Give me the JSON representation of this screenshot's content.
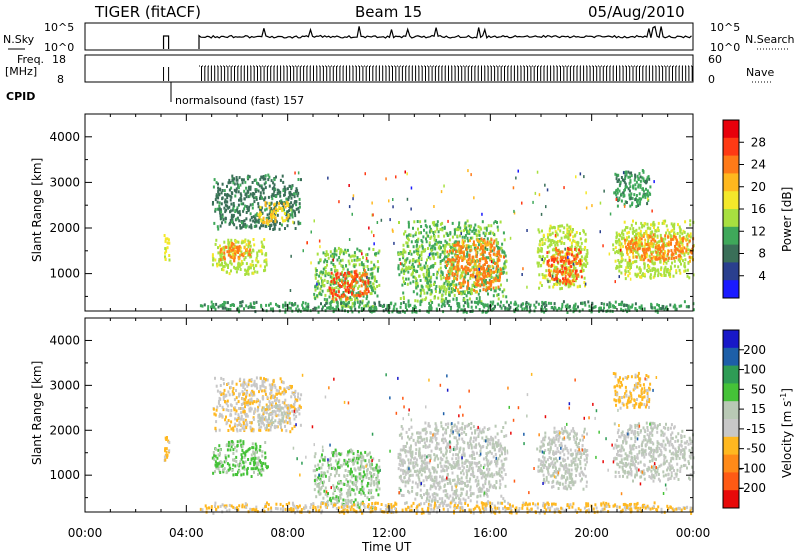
{
  "header": {
    "radar": "TIGER (fitACF)",
    "beam": "Beam 15",
    "date": "05/Aug/2010"
  },
  "aux_panels": {
    "nsky_label": "N.Sky",
    "nsky_ticks": [
      "10^5",
      "10^0"
    ],
    "nsearch_label": "N.Search",
    "nsearch_ticks": [
      "10^5",
      "10^0"
    ],
    "freq_label_1": "Freq.",
    "freq_label_2": "[MHz]",
    "freq_ticks": [
      "18",
      "8"
    ],
    "nave_label": "Nave",
    "nave_ticks": [
      "60",
      "0"
    ],
    "cpid_label": "CPID",
    "cpid_text": "normalsound (fast) 157"
  },
  "axes": {
    "xlabel": "Time UT",
    "x_ticks": [
      "00:00",
      "04:00",
      "08:00",
      "12:00",
      "16:00",
      "20:00",
      "00:00"
    ],
    "ylabel": "Slant Range [km]",
    "y_ticks": [
      "1000",
      "2000",
      "3000",
      "4000"
    ]
  },
  "power_colorbar": {
    "label": "Power [dB]",
    "ticks": [
      "28",
      "24",
      "20",
      "16",
      "12",
      "8",
      "4"
    ],
    "colors": [
      "#e8000b",
      "#ff3a14",
      "#ff7a18",
      "#ffb81e",
      "#f4e82a",
      "#a8e040",
      "#3fa85a",
      "#3a6f58",
      "#2a3f8e",
      "#1a1aff"
    ]
  },
  "velocity_colorbar": {
    "label": "Velocity [m s",
    "label_sup": "-1",
    "label_end": "]",
    "ticks": [
      "200",
      "100",
      "50",
      "15",
      "-15",
      "-50",
      "-100",
      "-200"
    ],
    "colors": [
      "#1818c8",
      "#1d5fa8",
      "#2e9c55",
      "#45c238",
      "#b9c9b5",
      "#c8c8c8",
      "#ffb820",
      "#ff8a18",
      "#ff5a14",
      "#e80a0a"
    ]
  },
  "chart_data": [
    {
      "type": "heatmap",
      "title": "Power",
      "xlabel": "Time UT",
      "ylabel": "Slant Range [km]",
      "xlim": [
        0,
        24
      ],
      "ylim": [
        180,
        4500
      ],
      "colorbar_range": [
        0,
        30
      ],
      "regions": [
        {
          "t0": 3.1,
          "t1": 3.3,
          "r0": 1300,
          "r1": 1900,
          "value": 16
        },
        {
          "t0": 5.0,
          "t1": 7.2,
          "r0": 1000,
          "r1": 1800,
          "value": 14
        },
        {
          "t0": 5.3,
          "t1": 6.5,
          "r0": 1300,
          "r1": 1700,
          "value": 22
        },
        {
          "t0": 5.0,
          "t1": 8.5,
          "r0": 2000,
          "r1": 3200,
          "value": 8
        },
        {
          "t0": 6.8,
          "t1": 8.0,
          "r0": 2100,
          "r1": 2600,
          "value": 18
        },
        {
          "t0": 9.0,
          "t1": 11.6,
          "r0": 300,
          "r1": 1600,
          "value": 12
        },
        {
          "t0": 9.6,
          "t1": 11.2,
          "r0": 450,
          "r1": 1100,
          "value": 24
        },
        {
          "t0": 12.3,
          "t1": 16.6,
          "r0": 400,
          "r1": 2200,
          "value": 12
        },
        {
          "t0": 14.2,
          "t1": 16.4,
          "r0": 600,
          "r1": 1800,
          "value": 22
        },
        {
          "t0": 17.8,
          "t1": 19.8,
          "r0": 700,
          "r1": 2100,
          "value": 14
        },
        {
          "t0": 18.2,
          "t1": 19.6,
          "r0": 800,
          "r1": 1600,
          "value": 24
        },
        {
          "t0": 20.8,
          "t1": 24.0,
          "r0": 900,
          "r1": 2200,
          "value": 14
        },
        {
          "t0": 21.2,
          "t1": 24.0,
          "r0": 1300,
          "r1": 1900,
          "value": 22
        },
        {
          "t0": 20.8,
          "t1": 22.3,
          "r0": 2500,
          "r1": 3300,
          "value": 10
        },
        {
          "t0": 4.5,
          "t1": 24.0,
          "r0": 180,
          "r1": 420,
          "value": 10
        }
      ]
    },
    {
      "type": "heatmap",
      "title": "Velocity",
      "xlabel": "Time UT",
      "ylabel": "Slant Range [km]",
      "xlim": [
        0,
        24
      ],
      "ylim": [
        180,
        4500
      ],
      "colorbar_range": [
        -250,
        250
      ],
      "regions": [
        {
          "t0": 3.1,
          "t1": 3.3,
          "r0": 1300,
          "r1": 1900,
          "value": -60
        },
        {
          "t0": 5.0,
          "t1": 7.2,
          "r0": 1000,
          "r1": 1800,
          "value": 60
        },
        {
          "t0": 5.0,
          "t1": 8.5,
          "r0": 2000,
          "r1": 3200,
          "value": -40
        },
        {
          "t0": 6.8,
          "t1": 8.0,
          "r0": 2100,
          "r1": 2600,
          "value": 0
        },
        {
          "t0": 9.0,
          "t1": 11.6,
          "r0": 300,
          "r1": 1600,
          "value": 40
        },
        {
          "t0": 12.3,
          "t1": 16.6,
          "r0": 400,
          "r1": 2200,
          "value": 0
        },
        {
          "t0": 17.8,
          "t1": 19.8,
          "r0": 700,
          "r1": 2100,
          "value": 0
        },
        {
          "t0": 20.8,
          "t1": 24.0,
          "r0": 900,
          "r1": 2200,
          "value": 0
        },
        {
          "t0": 20.8,
          "t1": 22.3,
          "r0": 2500,
          "r1": 3300,
          "value": -60
        },
        {
          "t0": 4.5,
          "t1": 24.0,
          "r0": 180,
          "r1": 420,
          "value": -60
        }
      ]
    }
  ]
}
